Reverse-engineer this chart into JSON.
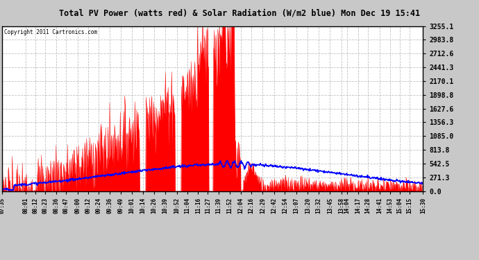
{
  "title": "Total PV Power (watts red) & Solar Radiation (W/m2 blue) Mon Dec 19 15:41",
  "copyright": "Copyright 2011 Cartronics.com",
  "ymax": 3255.1,
  "yticks": [
    0.0,
    271.3,
    542.5,
    813.8,
    1085.0,
    1356.3,
    1627.6,
    1898.8,
    2170.1,
    2441.3,
    2712.6,
    2983.8,
    3255.1
  ],
  "bg_color": "#c8c8c8",
  "plot_bg": "#ffffff",
  "red_color": "#ff0000",
  "blue_color": "#0000ff",
  "grid_color": "#b0b0b0",
  "title_bg": "#d4d4d4",
  "xtick_labels": [
    "07:35",
    "08:01",
    "08:12",
    "08:23",
    "08:36",
    "08:47",
    "09:00",
    "09:12",
    "09:24",
    "09:36",
    "09:49",
    "10:01",
    "10:14",
    "10:26",
    "10:39",
    "10:52",
    "11:04",
    "11:16",
    "11:27",
    "11:39",
    "11:52",
    "12:04",
    "12:16",
    "12:29",
    "12:42",
    "12:54",
    "13:07",
    "13:20",
    "13:32",
    "13:45",
    "13:58",
    "14:04",
    "14:17",
    "14:28",
    "14:41",
    "14:53",
    "15:04",
    "15:15",
    "15:30"
  ]
}
